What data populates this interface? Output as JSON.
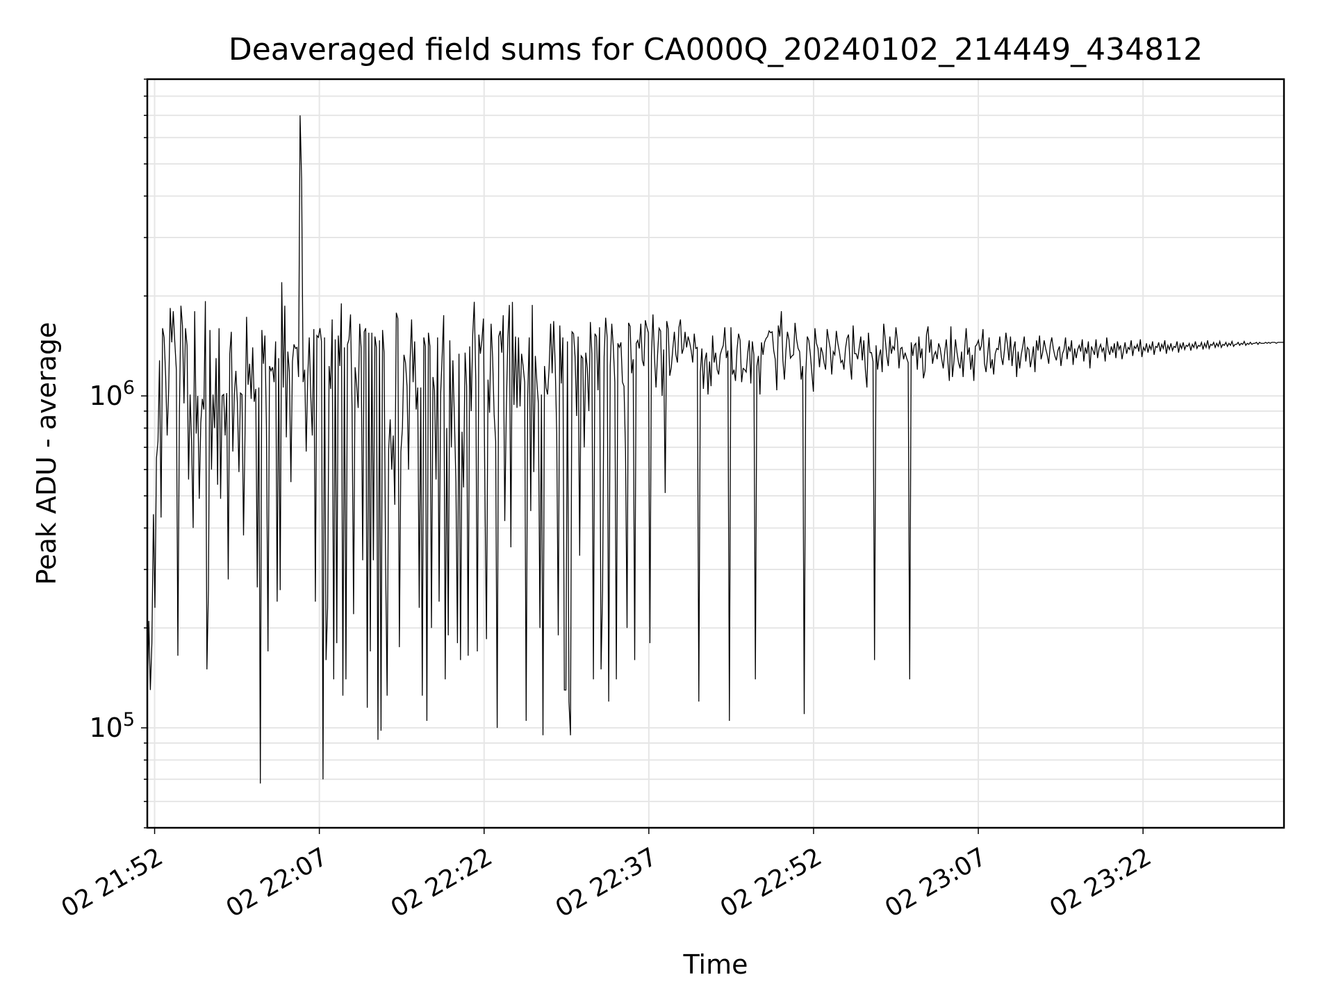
{
  "chart_data": {
    "type": "line",
    "title": "Deaveraged field sums for CA000Q_20240102_214449_434812",
    "xlabel": "Time",
    "ylabel": "Peak ADU - average",
    "yscale": "log",
    "ylim": [
      50000,
      9000000
    ],
    "xlim": [
      "2024-01-02 21:51:20",
      "2024-01-02 23:34:50"
    ],
    "x_ticks": [
      {
        "t": "2024-01-02 21:52",
        "label": "02 21:52"
      },
      {
        "t": "2024-01-02 22:07",
        "label": "02 22:07"
      },
      {
        "t": "2024-01-02 22:22",
        "label": "02 22:22"
      },
      {
        "t": "2024-01-02 22:37",
        "label": "02 22:37"
      },
      {
        "t": "2024-01-02 22:52",
        "label": "02 22:52"
      },
      {
        "t": "2024-01-02 23:07",
        "label": "02 23:07"
      },
      {
        "t": "2024-01-02 23:22",
        "label": "02 23:22"
      }
    ],
    "y_ticks": [
      {
        "value": 100000,
        "base": "10",
        "exp": "5"
      },
      {
        "value": 1000000,
        "base": "10",
        "exp": "6"
      }
    ],
    "grid": true,
    "legend": "none",
    "line_color": "#000000",
    "series": [
      {
        "start": "2024-01-02 21:51:20",
        "end": "2024-01-02 23:34:50",
        "values": [
          120000,
          210000,
          130000,
          180000,
          440000,
          230000,
          650000,
          730000,
          1280000,
          430000,
          1600000,
          1500000,
          1150000,
          760000,
          1050000,
          1840000,
          1450000,
          1800000,
          1450000,
          1200000,
          165000,
          880000,
          1870000,
          1630000,
          950000,
          1600000,
          1420000,
          560000,
          1010000,
          720000,
          400000,
          1800000,
          770000,
          1000000,
          490000,
          830000,
          980000,
          910000,
          1930000,
          150000,
          260000,
          1580000,
          600000,
          1010000,
          800000,
          1300000,
          540000,
          1600000,
          490000,
          1000000,
          1010000,
          760000,
          1020000,
          280000,
          1340000,
          1560000,
          680000,
          1010000,
          1190000,
          950000,
          590000,
          1020000,
          1010000,
          380000,
          780000,
          1730000,
          1080000,
          1250000,
          980000,
          1400000,
          960000,
          1050000,
          265000,
          1060000,
          68000,
          1580000,
          1250000,
          1520000,
          800000,
          170000,
          1230000,
          1190000,
          1220000,
          1100000,
          1460000,
          240000,
          1300000,
          260000,
          2200000,
          1060000,
          1870000,
          750000,
          1360000,
          1180000,
          550000,
          1270000,
          1430000,
          1390000,
          1400000,
          1140000,
          7000000,
          4500000,
          1100000,
          1200000,
          680000,
          1140000,
          1500000,
          1000000,
          760000,
          1590000,
          240000,
          1520000,
          1500000,
          1600000,
          1460000,
          70000,
          1500000,
          160000,
          230000,
          1230000,
          1050000,
          1700000,
          140000,
          1480000,
          180000,
          1520000,
          1230000,
          1900000,
          125000,
          1400000,
          140000,
          1430000,
          1480000,
          1760000,
          920000,
          220000,
          1220000,
          1080000,
          920000,
          1650000,
          1390000,
          320000,
          1560000,
          1600000,
          115000,
          1550000,
          170000,
          1550000,
          320000,
          1510000,
          1400000,
          92000,
          1470000,
          98000,
          1580000,
          1350000,
          310000,
          125000,
          690000,
          850000,
          600000,
          760000,
          470000,
          1780000,
          1710000,
          175000,
          680000,
          800000,
          1330000,
          1260000,
          1070000,
          600000,
          1270000,
          1700000,
          1100000,
          1460000,
          910000,
          1060000,
          230000,
          1060000,
          125000,
          1500000,
          1410000,
          105000,
          1550000,
          1410000,
          200000,
          1140000,
          1040000,
          560000,
          1500000,
          240000,
          1010000,
          1320000,
          1750000,
          140000,
          800000,
          190000,
          1470000,
          700000,
          1280000,
          860000,
          550000,
          180000,
          1340000,
          160000,
          780000,
          530000,
          1350000,
          1070000,
          165000,
          1410000,
          900000,
          1530000,
          1920000,
          1110000,
          170000,
          1530000,
          1340000,
          1470000,
          1710000,
          500000,
          185000,
          1120000,
          890000,
          1650000,
          1310000,
          880000,
          730000,
          100000,
          1510000,
          1570000,
          1350000,
          1750000,
          420000,
          910000,
          1490000,
          1880000,
          350000,
          1920000,
          940000,
          1510000,
          920000,
          1500000,
          930000,
          1340000,
          1230000,
          1100000,
          105000,
          1000000,
          1500000,
          450000,
          1880000,
          590000,
          1320000,
          1100000,
          950000,
          200000,
          1010000,
          95000,
          1230000,
          1060000,
          1010000,
          1210000,
          1650000,
          1170000,
          1680000,
          1240000,
          770000,
          190000,
          1630000,
          1090000,
          1500000,
          130000,
          130000,
          1460000,
          120000,
          95000,
          1560000,
          1540000,
          1310000,
          870000,
          1510000,
          330000,
          1320000,
          1300000,
          700000,
          1350000,
          1210000,
          900000,
          1670000,
          1340000,
          140000,
          1540000,
          1510000,
          1040000,
          1610000,
          150000,
          260000,
          1310000,
          1720000,
          1500000,
          120000,
          1230000,
          1650000,
          1410000,
          1100000,
          140000,
          1440000,
          1400000,
          1450000,
          1100000,
          1070000,
          680000,
          200000,
          1660000,
          1620000,
          1170000,
          1290000,
          160000,
          1440000,
          1470000,
          1390000,
          1650000,
          1280000,
          1230000,
          1690000,
          1610000,
          1550000,
          180000,
          1320000,
          1760000,
          1310000,
          1060000,
          1330000,
          1600000,
          1570000,
          1000000,
          1380000,
          510000,
          1680000,
          1590000,
          1150000,
          1220000,
          1390000,
          1560000,
          1330000,
          1260000,
          1610000,
          1700000,
          1340000,
          1390000,
          1560000,
          1400000,
          1510000,
          1450000,
          1370000,
          1260000,
          1540000,
          1390000,
          1400000,
          120000,
          1180000,
          1390000,
          1050000,
          1280000,
          1350000,
          1010000,
          1270000,
          1070000,
          1520000,
          1260000,
          1350000,
          1200000,
          1160000,
          1330000,
          1380000,
          1420000,
          1610000,
          1300000,
          1370000,
          105000,
          1610000,
          1160000,
          1200000,
          1110000,
          1380000,
          1540000,
          1470000,
          1100000,
          1210000,
          1200000,
          1180000,
          1350000,
          1470000,
          1090000,
          1460000,
          1330000,
          140000,
          1230000,
          1320000,
          1010000,
          1450000,
          1330000,
          1450000,
          1490000,
          1510000,
          1570000,
          1550000,
          1560000,
          1370000,
          1290000,
          1040000,
          1630000,
          1510000,
          1800000,
          1280000,
          1120000,
          1370000,
          1560000,
          1480000,
          1300000,
          1320000,
          1330000,
          1660000,
          1480000,
          1390000,
          1360000,
          1120000,
          1230000,
          110000,
          1150000,
          1510000,
          1470000,
          1340000,
          1170000,
          1030000,
          1600000,
          1440000,
          1390000,
          1220000,
          1400000,
          1350000,
          1260000,
          1200000,
          1590000,
          1480000,
          1390000,
          1160000,
          1360000,
          1330000,
          1570000,
          1440000,
          1360000,
          1260000,
          1280000,
          1200000,
          1390000,
          1490000,
          1530000,
          1250000,
          1120000,
          1630000,
          1340000,
          1340000,
          1290000,
          1400000,
          1510000,
          1280000,
          1470000,
          1200000,
          1060000,
          1550000,
          1350000,
          1350000,
          1270000,
          160000,
          1420000,
          1200000,
          1320000,
          1380000,
          1180000,
          1650000,
          1480000,
          1320000,
          1230000,
          1510000,
          1340000,
          1410000,
          1380000,
          1610000,
          1460000,
          1210000,
          1390000,
          1400000,
          1290000,
          1350000,
          1300000,
          1260000,
          140000,
          1450000,
          1320000,
          1420000,
          1440000,
          1200000,
          1510000,
          1300000,
          1390000,
          1130000,
          1190000,
          1530000,
          1620000,
          1350000,
          1480000,
          1250000,
          1330000,
          1360000,
          1290000,
          1440000,
          1390000,
          1290000,
          1210000,
          1360000,
          1480000,
          1270000,
          1110000,
          1620000,
          1140000,
          1270000,
          1480000,
          1350000,
          1260000,
          1210000,
          1360000,
          1140000,
          1390000,
          1600000,
          1330000,
          1400000,
          1200000,
          1330000,
          1110000,
          1410000,
          1430000,
          1470000,
          1370000,
          1420000,
          1590000,
          1250000,
          1180000,
          1320000,
          1500000,
          1210000,
          1290000,
          1160000,
          1340000,
          1390000,
          1380000,
          1510000,
          1310000,
          1240000,
          1370000,
          1550000,
          1430000,
          1280000,
          1510000,
          1230000,
          1390000,
          1460000,
          1140000,
          1360000,
          1210000,
          1330000,
          1410000,
          1510000,
          1270000,
          1400000,
          1380000,
          1220000,
          1300000,
          1410000,
          1180000,
          1470000,
          1370000,
          1520000,
          1290000,
          1350000,
          1470000,
          1390000,
          1330000,
          1250000,
          1420000,
          1500000,
          1390000,
          1320000,
          1280000,
          1370000,
          1410000,
          1230000,
          1340000,
          1380000,
          1500000,
          1290000,
          1410000,
          1360000,
          1470000,
          1240000,
          1390000,
          1300000,
          1380000,
          1420000,
          1360000,
          1480000,
          1270000,
          1400000,
          1340000,
          1460000,
          1210000,
          1410000,
          1370000,
          1330000,
          1480000,
          1300000,
          1390000,
          1430000,
          1360000,
          1400000,
          1270000,
          1500000,
          1380000,
          1330000,
          1410000,
          1350000,
          1440000,
          1300000,
          1460000,
          1380000,
          1420000,
          1290000,
          1370000,
          1450000,
          1340000,
          1400000,
          1380000,
          1470000,
          1320000,
          1410000,
          1390000,
          1430000,
          1360000,
          1480000,
          1310000,
          1400000,
          1370000,
          1440000,
          1350000,
          1420000,
          1380000,
          1460000,
          1330000,
          1410000,
          1400000,
          1450000,
          1360000,
          1430000,
          1390000,
          1470000,
          1340000,
          1420000,
          1380000,
          1440000,
          1370000,
          1410000,
          1400000,
          1460000,
          1350000,
          1430000,
          1390000,
          1450000,
          1380000,
          1420000,
          1410000,
          1440000,
          1370000,
          1430000,
          1400000,
          1460000,
          1390000,
          1420000,
          1410000,
          1450000,
          1380000,
          1440000,
          1400000,
          1470000,
          1390000,
          1430000,
          1420000,
          1450000,
          1400000,
          1440000,
          1410000,
          1460000,
          1400000,
          1430000,
          1420000,
          1450000,
          1410000,
          1440000,
          1420000,
          1460000,
          1410000,
          1430000,
          1430000,
          1450000,
          1420000,
          1440000,
          1430000,
          1460000,
          1420000,
          1440000,
          1430000,
          1450000,
          1430000,
          1440000,
          1440000,
          1450000,
          1430000,
          1450000,
          1440000,
          1440000,
          1440000,
          1450000,
          1440000,
          1450000,
          1440000,
          1450000,
          1450000,
          1450000,
          1440000,
          1450000,
          1450000,
          1450000,
          1450000,
          1450000
        ]
      }
    ]
  }
}
